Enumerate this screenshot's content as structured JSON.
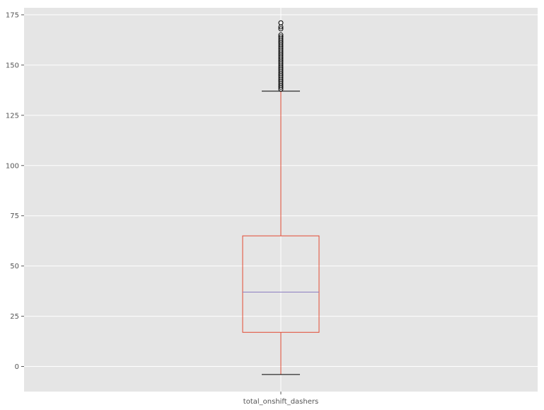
{
  "chart_data": {
    "type": "box",
    "categories": [
      "total_onshift_dashers"
    ],
    "boxes": [
      {
        "name": "total_onshift_dashers",
        "whisker_low": -4,
        "q1": 17,
        "median": 37,
        "q3": 65,
        "whisker_high": 137,
        "outliers": [
          138,
          139,
          140,
          141,
          142,
          143,
          144,
          145,
          146,
          147,
          148,
          149,
          150,
          151,
          152,
          153,
          154,
          155,
          156,
          157,
          158,
          159,
          160,
          161,
          162,
          163,
          164,
          165,
          168,
          169,
          171
        ]
      }
    ],
    "yticks": [
      0,
      25,
      50,
      75,
      100,
      125,
      150,
      175
    ],
    "ylim": [
      -12.5,
      178.5
    ],
    "grid": true,
    "colors": {
      "background": "#e5e5e5",
      "grid": "#ffffff",
      "box": "#e24a33",
      "median": "#8b7dc0",
      "whisker_cap": "#000000",
      "outlier": "#000000",
      "tick_label": "#555555"
    }
  }
}
